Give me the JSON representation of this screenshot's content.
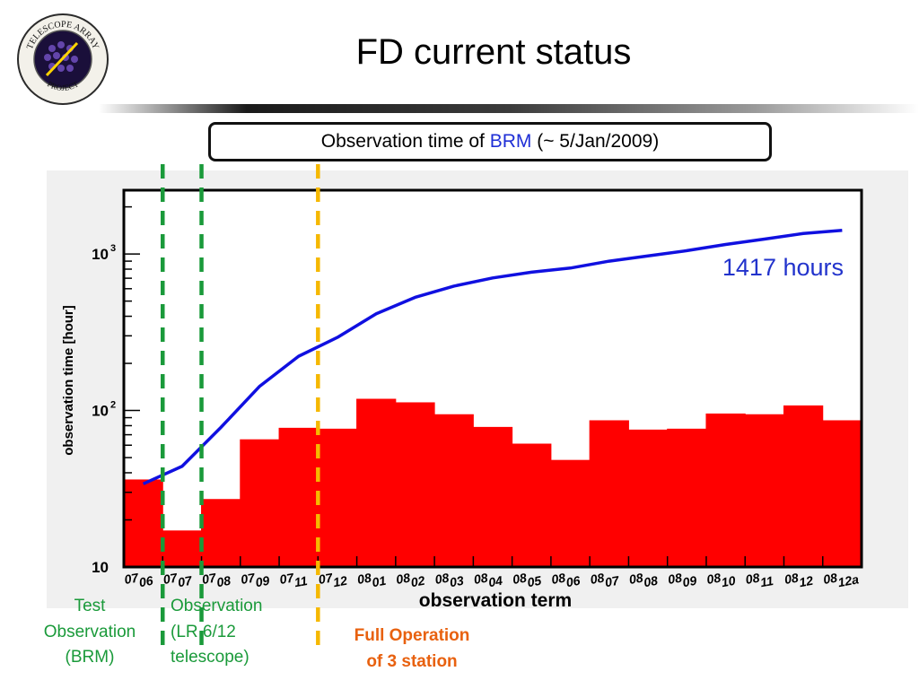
{
  "slide": {
    "title": "FD current status",
    "logo_text_top": "TELESCOPE ARRAY",
    "logo_text_bottom": "PROJECT",
    "subtitle_prefix": "Observation time of ",
    "subtitle_highlight": "BRM",
    "subtitle_suffix": " (~ 5/Jan/2009)"
  },
  "annotations": {
    "test": [
      "Test",
      "Observation",
      "(BRM)"
    ],
    "observation": [
      "Observation",
      "(LR 6/12",
      "telescope)"
    ],
    "full": [
      "Full Operation",
      "of 3 station"
    ],
    "hours": "1417 hours"
  },
  "colors": {
    "bars": "#ff0000",
    "cumulative_line": "#1010e0",
    "green_marker": "#1a9a3a",
    "orange_marker": "#f5b800",
    "hours_text": "#2233cc"
  },
  "chart_data": {
    "type": "bar",
    "xlabel": "observation term",
    "ylabel": "observation time [hour]",
    "y_scale": "log",
    "ylim": [
      10,
      2300
    ],
    "y_tick_labels": [
      "10",
      "10",
      "10"
    ],
    "y_tick_exponents": [
      "",
      "2",
      "3"
    ],
    "categories": [
      "0706",
      "0707",
      "0708",
      "0709",
      "0711",
      "0712",
      "0801",
      "0802",
      "0803",
      "0804",
      "0805",
      "0806",
      "0807",
      "0808",
      "0809",
      "0810",
      "0811",
      "0812",
      "0812a"
    ],
    "series": [
      {
        "kind": "bar",
        "values": [
          36,
          17,
          27,
          65,
          77,
          76,
          118,
          112,
          94,
          78,
          61,
          48,
          86,
          75,
          76,
          95,
          94,
          107,
          86
        ]
      },
      {
        "kind": "cumulative-line",
        "values": [
          34,
          44,
          78,
          143,
          222,
          293,
          415,
          528,
          623,
          703,
          765,
          813,
          900,
          972,
          1050,
          1150,
          1245,
          1352,
          1417
        ]
      }
    ],
    "markers": [
      {
        "after_category": "0706",
        "color": "green"
      },
      {
        "after_category": "0707",
        "color": "green"
      },
      {
        "after_category": "0711",
        "color": "orange"
      }
    ]
  }
}
